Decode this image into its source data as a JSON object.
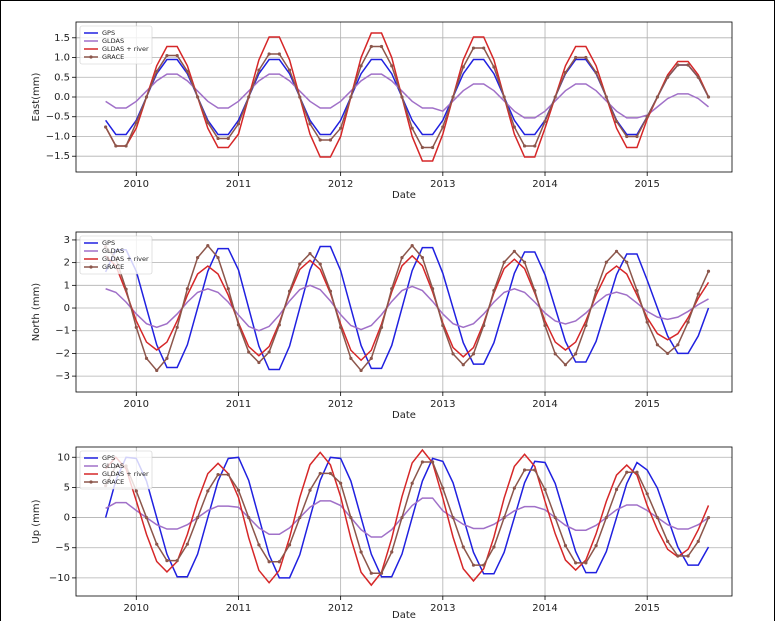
{
  "chart_data": [
    {
      "type": "line",
      "xlabel": "Date",
      "ylabel": "East(mm)",
      "grid": true,
      "legend": "upper left",
      "xlim": [
        2009.41,
        2015.83
      ],
      "xticks": [
        2010,
        2011,
        2012,
        2013,
        2014,
        2015
      ],
      "ylim": [
        -1.9,
        1.9
      ],
      "yticks": [
        {
          "value": -1.5,
          "label": "−1.5"
        },
        {
          "value": -1,
          "label": "−1.0"
        },
        {
          "value": -0.5,
          "label": "−0.5"
        },
        {
          "value": 0,
          "label": "0.0"
        },
        {
          "value": 0.5,
          "label": "0.5"
        },
        {
          "value": 1,
          "label": "1.0"
        },
        {
          "value": 1.5,
          "label": "1.5"
        }
      ],
      "x": [
        2009.7,
        2009.8,
        2009.9,
        2010,
        2010.1,
        2010.2,
        2010.3,
        2010.4,
        2010.5,
        2010.6,
        2010.7,
        2010.8,
        2010.9,
        2011,
        2011.1,
        2011.2,
        2011.3,
        2011.4,
        2011.5,
        2011.6,
        2011.7,
        2011.8,
        2011.9,
        2012,
        2012.1,
        2012.2,
        2012.3,
        2012.4,
        2012.5,
        2012.6,
        2012.7,
        2012.8,
        2012.9,
        2013,
        2013.1,
        2013.2,
        2013.3,
        2013.4,
        2013.5,
        2013.6,
        2013.7,
        2013.8,
        2013.9,
        2014,
        2014.1,
        2014.2,
        2014.3,
        2014.4,
        2014.5,
        2014.6,
        2014.7,
        2014.8,
        2014.9,
        2015,
        2015.1,
        2015.2,
        2015.3,
        2015.4,
        2015.5,
        2015.6
      ],
      "series": [
        {
          "name": "GPS",
          "color": "#2020e0",
          "values": [
            -0.59,
            -0.95,
            -0.95,
            -0.59,
            0,
            0.59,
            0.95,
            0.95,
            0.59,
            0,
            -0.59,
            -0.95,
            -0.95,
            -0.59,
            0,
            0.59,
            0.95,
            0.95,
            0.59,
            0,
            -0.59,
            -0.95,
            -0.95,
            -0.59,
            0,
            0.59,
            0.95,
            0.95,
            0.59,
            0,
            -0.59,
            -0.95,
            -0.95,
            -0.59,
            0,
            0.59,
            0.95,
            0.95,
            0.59,
            0,
            -0.59,
            -0.95,
            -0.95,
            -0.59,
            0,
            0.59,
            0.95,
            0.95,
            0.59,
            0,
            -0.59,
            -0.95,
            -0.95,
            -0.5,
            0,
            0.5,
            0.81,
            0.81,
            0.5,
            0
          ]
        },
        {
          "name": "GLDAS",
          "color": "#a070c8",
          "values": [
            -0.11,
            -0.28,
            -0.28,
            -0.11,
            0.15,
            0.41,
            0.58,
            0.58,
            0.41,
            0.15,
            -0.11,
            -0.28,
            -0.28,
            -0.11,
            0.15,
            0.41,
            0.58,
            0.58,
            0.41,
            0.15,
            -0.11,
            -0.28,
            -0.28,
            -0.11,
            0.15,
            0.41,
            0.58,
            0.58,
            0.41,
            0.15,
            -0.11,
            -0.28,
            -0.28,
            -0.36,
            -0.1,
            0.16,
            0.33,
            0.33,
            0.16,
            -0.1,
            -0.36,
            -0.53,
            -0.53,
            -0.36,
            -0.1,
            0.16,
            0.33,
            0.33,
            0.16,
            -0.1,
            -0.36,
            -0.53,
            -0.53,
            -0.46,
            -0.25,
            -0.04,
            0.08,
            0.08,
            -0.04,
            -0.25
          ]
        },
        {
          "name": "GLDAS + river",
          "color": "#d62728",
          "values": [
            -0.76,
            -1.24,
            -1.24,
            -0.79,
            0,
            0.79,
            1.28,
            1.28,
            0.79,
            0,
            -0.79,
            -1.28,
            -1.28,
            -0.94,
            0,
            0.94,
            1.52,
            1.52,
            0.94,
            0,
            -0.94,
            -1.52,
            -1.52,
            -1.0,
            0,
            1.0,
            1.62,
            1.62,
            1.0,
            0,
            -1.0,
            -1.62,
            -1.62,
            -0.94,
            0,
            0.94,
            1.52,
            1.52,
            0.94,
            0,
            -0.94,
            -1.52,
            -1.52,
            -0.79,
            0,
            0.79,
            1.28,
            1.28,
            0.79,
            0,
            -0.79,
            -1.28,
            -1.28,
            -0.56,
            0,
            0.56,
            0.9,
            0.9,
            0.56,
            0
          ]
        },
        {
          "name": "GRACE",
          "color": "#8c564b",
          "markers": true,
          "values": [
            -0.76,
            -1.24,
            -1.24,
            -0.65,
            0,
            0.65,
            1.05,
            1.05,
            0.65,
            0,
            -0.65,
            -1.05,
            -1.05,
            -0.68,
            0,
            0.68,
            1.09,
            1.09,
            0.68,
            0,
            -0.68,
            -1.09,
            -1.09,
            -0.79,
            0,
            0.79,
            1.28,
            1.28,
            0.79,
            0,
            -0.79,
            -1.28,
            -1.28,
            -0.76,
            0,
            0.76,
            1.24,
            1.24,
            0.76,
            0,
            -0.76,
            -1.24,
            -1.24,
            -0.62,
            0,
            0.62,
            1.0,
            1.0,
            0.62,
            0,
            -0.62,
            -1.0,
            -1.0,
            -0.5,
            0,
            0.5,
            0.81,
            0.81,
            0.5,
            0
          ]
        }
      ]
    },
    {
      "type": "line",
      "xlabel": "Date",
      "ylabel": "North (mm)",
      "grid": true,
      "legend": "upper left",
      "xlim": [
        2009.41,
        2015.83
      ],
      "xticks": [
        2010,
        2011,
        2012,
        2013,
        2014,
        2015
      ],
      "ylim": [
        -3.7,
        3.35
      ],
      "yticks": [
        {
          "value": -3,
          "label": "−3"
        },
        {
          "value": -2,
          "label": "−2"
        },
        {
          "value": -1,
          "label": "−1"
        },
        0,
        1,
        2,
        3
      ],
      "x": [
        2009.7,
        2009.8,
        2009.9,
        2010,
        2010.1,
        2010.2,
        2010.3,
        2010.4,
        2010.5,
        2010.6,
        2010.7,
        2010.8,
        2010.9,
        2011,
        2011.1,
        2011.2,
        2011.3,
        2011.4,
        2011.5,
        2011.6,
        2011.7,
        2011.8,
        2011.9,
        2012,
        2012.1,
        2012.2,
        2012.3,
        2012.4,
        2012.5,
        2012.6,
        2012.7,
        2012.8,
        2012.9,
        2013,
        2013.1,
        2013.2,
        2013.3,
        2013.4,
        2013.5,
        2013.6,
        2013.7,
        2013.8,
        2013.9,
        2014,
        2014.1,
        2014.2,
        2014.3,
        2014.4,
        2014.5,
        2014.6,
        2014.7,
        2014.8,
        2014.9,
        2015,
        2015.1,
        2015.2,
        2015.3,
        2015.4,
        2015.5,
        2015.6
      ],
      "series": [
        {
          "name": "GPS",
          "color": "#2020e0",
          "values": [
            1.59,
            2.57,
            2.57,
            1.62,
            0,
            -1.62,
            -2.62,
            -2.62,
            -1.62,
            0,
            1.62,
            2.62,
            2.62,
            1.68,
            0,
            -1.68,
            -2.71,
            -2.71,
            -1.68,
            0,
            1.68,
            2.71,
            2.71,
            1.65,
            0,
            -1.65,
            -2.66,
            -2.66,
            -1.65,
            0,
            1.65,
            2.66,
            2.66,
            1.53,
            0,
            -1.53,
            -2.47,
            -2.47,
            -1.53,
            0,
            1.53,
            2.47,
            2.47,
            1.47,
            0,
            -1.47,
            -2.38,
            -2.38,
            -1.47,
            0,
            1.47,
            2.38,
            2.38,
            1.23,
            0,
            -1.23,
            -2.0,
            -2.0,
            -1.23,
            0
          ]
        },
        {
          "name": "GLDAS",
          "color": "#a070c8",
          "values": [
            0.85,
            0.69,
            0.26,
            -0.26,
            -0.69,
            -0.85,
            -0.69,
            -0.26,
            0.26,
            0.69,
            0.85,
            0.69,
            0.26,
            -0.31,
            -0.81,
            -1.0,
            -0.81,
            -0.31,
            0.31,
            0.81,
            1.0,
            0.81,
            0.31,
            -0.29,
            -0.77,
            -0.95,
            -0.77,
            -0.29,
            0.29,
            0.77,
            0.95,
            0.77,
            0.29,
            -0.26,
            -0.69,
            -0.85,
            -0.69,
            -0.26,
            0.26,
            0.69,
            0.85,
            0.69,
            0.26,
            -0.22,
            -0.57,
            -0.7,
            -0.57,
            -0.22,
            0.22,
            0.57,
            0.7,
            0.57,
            0.22,
            -0.15,
            -0.4,
            -0.5,
            -0.4,
            -0.15,
            0.15,
            0.4
          ]
        },
        {
          "name": "GLDAS + river",
          "color": "#d62728",
          "values": [
            2.3,
            1.86,
            0.71,
            -0.57,
            -1.5,
            -1.85,
            -1.5,
            -0.57,
            0.57,
            1.5,
            1.85,
            1.5,
            0.57,
            -0.65,
            -1.7,
            -2.1,
            -1.7,
            -0.65,
            0.65,
            1.7,
            2.1,
            1.7,
            0.65,
            -0.71,
            -1.86,
            -2.3,
            -1.86,
            -0.71,
            0.71,
            1.86,
            2.3,
            1.86,
            0.71,
            -0.66,
            -1.74,
            -2.15,
            -1.74,
            -0.66,
            0.66,
            1.74,
            2.15,
            1.74,
            0.66,
            -0.57,
            -1.5,
            -1.85,
            -1.5,
            -0.57,
            0.57,
            1.5,
            1.85,
            1.5,
            0.57,
            -0.43,
            -1.13,
            -1.4,
            -1.13,
            -0.43,
            0.43,
            1.13
          ]
        },
        {
          "name": "GRACE",
          "color": "#8c564b",
          "markers": true,
          "values": [
            2.7,
            2.18,
            0.83,
            -0.85,
            -2.22,
            -2.75,
            -2.22,
            -0.85,
            0.85,
            2.22,
            2.75,
            2.22,
            0.85,
            -0.74,
            -1.94,
            -2.4,
            -1.94,
            -0.74,
            0.74,
            1.94,
            2.4,
            1.94,
            0.74,
            -0.85,
            -2.22,
            -2.75,
            -2.22,
            -0.85,
            0.85,
            2.22,
            2.75,
            2.22,
            0.85,
            -0.77,
            -2.02,
            -2.5,
            -2.02,
            -0.77,
            0.77,
            2.02,
            2.5,
            2.02,
            0.77,
            -0.77,
            -2.02,
            -2.5,
            -2.02,
            -0.77,
            0.77,
            2.02,
            2.5,
            2.02,
            0.77,
            -0.62,
            -1.62,
            -2.0,
            -1.62,
            -0.62,
            0.62,
            1.62
          ]
        }
      ]
    },
    {
      "type": "line",
      "xlabel": "Date",
      "ylabel": "Up (mm)",
      "grid": true,
      "legend": "upper left",
      "xlim": [
        2009.41,
        2015.83
      ],
      "xticks": [
        2010,
        2011,
        2012,
        2013,
        2014,
        2015
      ],
      "ylim": [
        -13,
        11.7
      ],
      "yticks": [
        {
          "value": -10,
          "label": "−10"
        },
        {
          "value": -5,
          "label": "−5"
        },
        0,
        5,
        10
      ],
      "x": [
        2009.7,
        2009.8,
        2009.9,
        2010,
        2010.1,
        2010.2,
        2010.3,
        2010.4,
        2010.5,
        2010.6,
        2010.7,
        2010.8,
        2010.9,
        2011,
        2011.1,
        2011.2,
        2011.3,
        2011.4,
        2011.5,
        2011.6,
        2011.7,
        2011.8,
        2011.9,
        2012,
        2012.1,
        2012.2,
        2012.3,
        2012.4,
        2012.5,
        2012.6,
        2012.7,
        2012.8,
        2012.9,
        2013,
        2013.1,
        2013.2,
        2013.3,
        2013.4,
        2013.5,
        2013.6,
        2013.7,
        2013.8,
        2013.9,
        2014,
        2014.1,
        2014.2,
        2014.3,
        2014.4,
        2014.5,
        2014.6,
        2014.7,
        2014.8,
        2014.9,
        2015,
        2015.1,
        2015.2,
        2015.3,
        2015.4,
        2015.5,
        2015.6
      ],
      "series": [
        {
          "name": "GPS",
          "color": "#2020e0",
          "values": [
            0,
            6.17,
            9.99,
            9.8,
            6.06,
            0,
            -6.06,
            -9.8,
            -9.8,
            -6.06,
            0,
            6.06,
            9.8,
            9.99,
            6.17,
            0,
            -6.17,
            -9.99,
            -9.99,
            -6.17,
            0,
            6.17,
            9.99,
            9.8,
            6.06,
            0,
            -6.06,
            -9.8,
            -9.8,
            -6.06,
            0,
            6.06,
            9.8,
            9.32,
            5.76,
            0,
            -5.76,
            -9.32,
            -9.32,
            -5.76,
            0,
            5.76,
            9.32,
            9.13,
            5.64,
            0,
            -5.64,
            -9.13,
            -9.13,
            -5.64,
            0,
            5.64,
            9.13,
            7.89,
            4.88,
            0,
            -4.88,
            -7.89,
            -7.89,
            -4.88
          ]
        },
        {
          "name": "GLDAS",
          "color": "#a070c8",
          "values": [
            1.53,
            2.47,
            2.47,
            1.18,
            0,
            -1.18,
            -1.9,
            -1.9,
            -1.18,
            0,
            1.18,
            1.9,
            1.9,
            1.71,
            0,
            -1.71,
            -2.76,
            -2.76,
            -1.71,
            0,
            1.71,
            2.76,
            2.76,
            2.0,
            0,
            -2.0,
            -3.23,
            -3.23,
            -2.0,
            0,
            2.0,
            3.23,
            3.23,
            1.12,
            0,
            -1.12,
            -1.81,
            -1.81,
            -1.12,
            0,
            1.12,
            1.81,
            1.81,
            1.29,
            0,
            -1.29,
            -2.09,
            -2.09,
            -1.29,
            0,
            1.29,
            2.09,
            2.09,
            1.18,
            0,
            -1.18,
            -1.9,
            -1.9,
            -1.18,
            0
          ]
        },
        {
          "name": "GLDAS + river",
          "color": "#d62728",
          "values": [
            8.09,
            10,
            8.09,
            2.78,
            -2.78,
            -7.28,
            -9,
            -7.28,
            -2.78,
            2.78,
            7.28,
            9,
            7.28,
            3.34,
            -3.34,
            -8.74,
            -10.8,
            -8.74,
            -3.34,
            3.34,
            8.74,
            10.8,
            8.74,
            3.46,
            -3.46,
            -9.06,
            -11.2,
            -9.06,
            -3.46,
            3.46,
            9.06,
            11.2,
            9.06,
            3.24,
            -3.24,
            -8.49,
            -10.5,
            -8.49,
            -3.24,
            3.24,
            8.49,
            10.5,
            8.49,
            2.69,
            -2.69,
            -7.04,
            -8.7,
            -7.04,
            -2.69,
            2.69,
            7.04,
            8.7,
            7.04,
            2.01,
            -2.01,
            -5.26,
            -6.5,
            -5.26,
            -2.01,
            2.01
          ]
        },
        {
          "name": "GRACE",
          "color": "#8c564b",
          "markers": true,
          "values": [
            5.29,
            8.56,
            8.56,
            4.41,
            0,
            -4.41,
            -7.13,
            -7.13,
            -4.41,
            0,
            4.41,
            7.13,
            7.13,
            4.53,
            0,
            -4.53,
            -7.32,
            -7.32,
            -4.53,
            0,
            4.53,
            7.32,
            7.32,
            5.7,
            0,
            -5.7,
            -9.22,
            -9.22,
            -5.7,
            0,
            5.7,
            9.22,
            9.22,
            4.88,
            0,
            -4.88,
            -7.89,
            -7.89,
            -4.88,
            0,
            4.88,
            7.89,
            7.89,
            4.65,
            0,
            -4.65,
            -7.51,
            -7.51,
            -4.65,
            0,
            4.65,
            7.51,
            7.51,
            3.94,
            0,
            -3.94,
            -6.37,
            -6.37,
            -3.94,
            0
          ]
        }
      ]
    }
  ]
}
